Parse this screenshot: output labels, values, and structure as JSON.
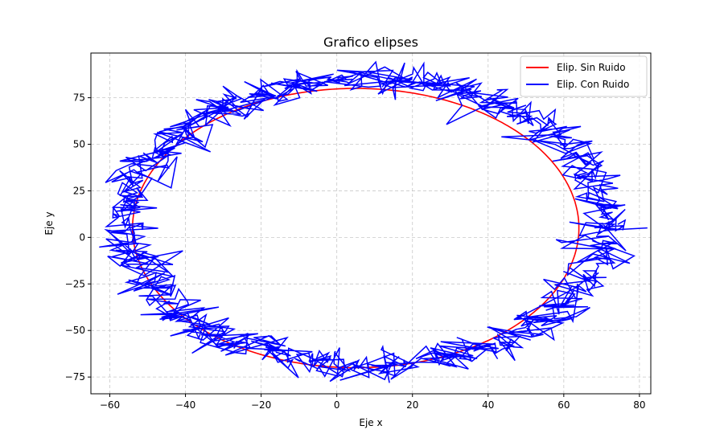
{
  "chart_data": {
    "type": "line",
    "title": "Grafico elipses",
    "xlabel": "Eje x",
    "ylabel": "Eje y",
    "xlim": [
      -65,
      83
    ],
    "ylim": [
      -84,
      99
    ],
    "xticks": [
      -60,
      -40,
      -20,
      0,
      20,
      40,
      60,
      80
    ],
    "yticks": [
      -75,
      -50,
      -25,
      0,
      25,
      50,
      75
    ],
    "xtick_labels": [
      "−60",
      "−40",
      "−20",
      "0",
      "20",
      "40",
      "60",
      "80"
    ],
    "ytick_labels": [
      "−75",
      "−50",
      "−25",
      "0",
      "25",
      "50",
      "75"
    ],
    "grid": true,
    "legend_position": "top-right",
    "series": [
      {
        "name": "Elip. Sin Ruido",
        "color": "#ff0000",
        "kind": "ellipse",
        "center": [
          5,
          5
        ],
        "semi_axes": [
          59,
          75
        ]
      },
      {
        "name": "Elip. Con Ruido",
        "color": "#0000ff",
        "kind": "noisy-ellipse",
        "center": [
          8,
          8
        ],
        "semi_axes": [
          63,
          77
        ],
        "noise": 4
      }
    ]
  }
}
